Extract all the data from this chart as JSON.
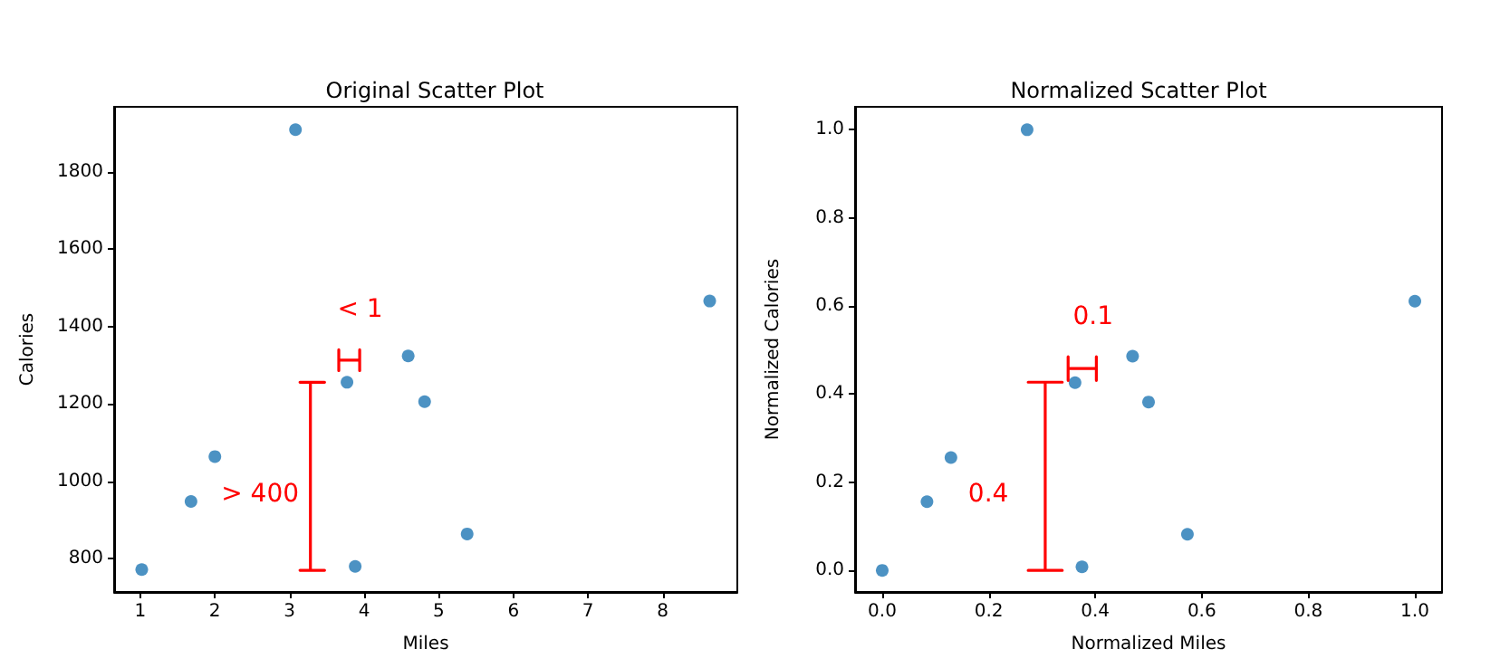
{
  "chart_data": [
    {
      "type": "scatter",
      "title": "Original Scatter Plot",
      "xlabel": "Miles",
      "ylabel": "Calories",
      "xlim": [
        0.65,
        9.0
      ],
      "ylim": [
        714,
        1968
      ],
      "xticks": [
        1,
        2,
        3,
        4,
        5,
        6,
        7,
        8
      ],
      "yticks": [
        800,
        1000,
        1200,
        1400,
        1600,
        1800
      ],
      "grid": false,
      "marker": "circle",
      "series": [
        {
          "color": "#1f77b4",
          "x": [
            1.02,
            1.68,
            2.0,
            3.08,
            3.77,
            3.88,
            4.59,
            4.81,
            5.38,
            8.63
          ],
          "values": [
            772,
            948,
            1064,
            1909,
            1256,
            780,
            1324,
            1206,
            864,
            1466
          ]
        },
        {
          "type": "line",
          "color": "#ff0000",
          "marker": "none",
          "x": [
            3.14,
            3.47,
            3.28,
            3.28,
            3.14,
            3.47
          ],
          "values": [
            770,
            770,
            770,
            1256,
            1256,
            1256
          ]
        },
        {
          "type": "line",
          "color": "#ff0000",
          "marker": "none",
          "x": [
            3.66,
            3.66,
            3.66,
            3.94,
            3.94,
            3.94
          ],
          "values": [
            1286,
            1340,
            1313,
            1313,
            1286,
            1340
          ]
        }
      ],
      "annotations": [
        "> 400",
        "< 1"
      ]
    },
    {
      "type": "scatter",
      "title": "Normalized Scatter Plot",
      "xlabel": "Normalized Miles",
      "ylabel": "Normalized Calories",
      "xlim": [
        -0.051,
        1.051
      ],
      "ylim": [
        -0.049,
        1.052
      ],
      "xticks": [
        {
          "value": 0,
          "label": "0.0"
        },
        0.2,
        0.4,
        0.6,
        0.8,
        {
          "value": 1,
          "label": "1.0"
        }
      ],
      "yticks": [
        {
          "value": 0,
          "label": "0.0"
        },
        0.2,
        0.4,
        0.6,
        0.8,
        {
          "value": 1,
          "label": "1.0"
        }
      ],
      "grid": false,
      "marker": "circle",
      "series": [
        {
          "color": "#1f77b4",
          "x": [
            0,
            0.084,
            0.129,
            0.272,
            0.362,
            0.375,
            0.47,
            0.5,
            0.573,
            1.0
          ],
          "values": [
            0,
            0.156,
            0.256,
            1.0,
            0.426,
            0.008,
            0.486,
            0.382,
            0.082,
            0.611
          ]
        },
        {
          "type": "line",
          "color": "#ff0000",
          "marker": "none",
          "x": [
            0.274,
            0.338,
            0.306,
            0.306,
            0.274,
            0.338
          ],
          "values": [
            0,
            0,
            0,
            0.427,
            0.427,
            0.427
          ]
        },
        {
          "type": "line",
          "color": "#ff0000",
          "marker": "none",
          "x": [
            0.349,
            0.349,
            0.349,
            0.402,
            0.402,
            0.402
          ],
          "values": [
            0.431,
            0.485,
            0.458,
            0.458,
            0.431,
            0.485
          ]
        }
      ],
      "annotations": [
        "0.4",
        "0.1"
      ]
    }
  ]
}
